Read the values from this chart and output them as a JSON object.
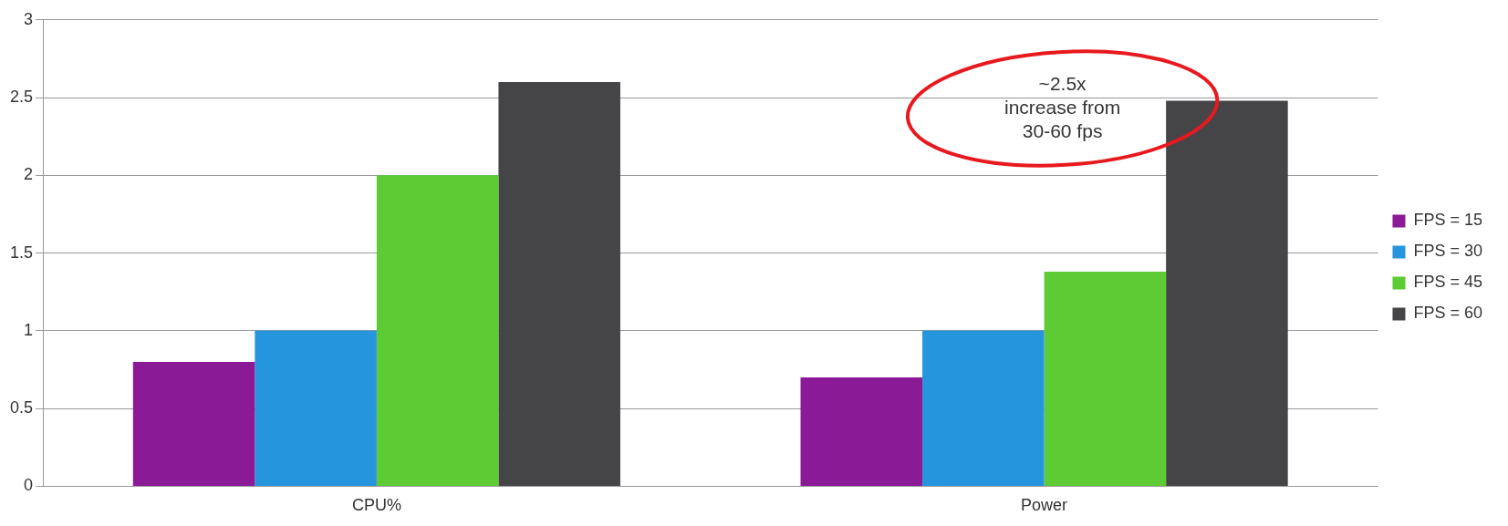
{
  "chart_data": {
    "type": "bar",
    "categories": [
      "CPU%",
      "Power"
    ],
    "series": [
      {
        "name": "FPS = 15",
        "color": "#8b1a96",
        "values": [
          0.8,
          0.7
        ]
      },
      {
        "name": "FPS = 30",
        "color": "#2596de",
        "values": [
          1.0,
          1.0
        ]
      },
      {
        "name": "FPS = 45",
        "color": "#5dcb34",
        "values": [
          2.0,
          1.38
        ]
      },
      {
        "name": "FPS = 60",
        "color": "#454548",
        "values": [
          2.6,
          2.48
        ]
      }
    ],
    "ylim": [
      0,
      3
    ],
    "yticks": [
      0,
      0.5,
      1,
      1.5,
      2,
      2.5,
      3
    ],
    "grid": "y",
    "legend": "right",
    "annotations": [
      "~2.5x\nincrease from\n30-60 fps"
    ]
  }
}
